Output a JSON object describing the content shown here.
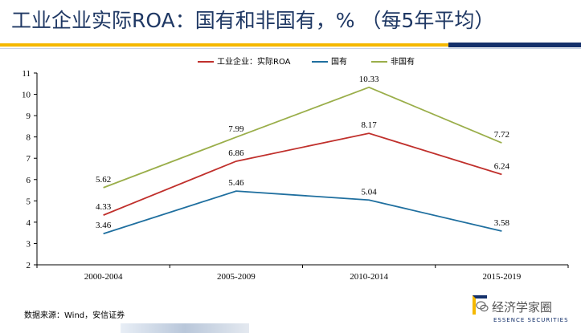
{
  "title": "工业企业实际ROA：国有和非国有，% （每5年平均）",
  "source": "数据来源：Wind，安信证券",
  "watermark": "经济学家圈",
  "brand_sub": "ESSENCE SECURITIES",
  "colors": {
    "title": "#1f3864",
    "gold": "#f5b800",
    "navy": "#14306b"
  },
  "chart_data": {
    "type": "line",
    "categories": [
      "2000-2004",
      "2005-2009",
      "2010-2014",
      "2015-2019"
    ],
    "ylim": [
      2,
      11
    ],
    "yticks": [
      2,
      3,
      4,
      5,
      6,
      7,
      8,
      9,
      10,
      11
    ],
    "grid": false,
    "legend_position": "top-center",
    "series": [
      {
        "name": "工业企业：实际ROA",
        "color": "#c0302c",
        "values": [
          4.33,
          6.86,
          8.17,
          6.24
        ],
        "labels": [
          "4.33",
          "6.86",
          "8.17",
          "6.24"
        ]
      },
      {
        "name": "国有",
        "color": "#1f6f9f",
        "values": [
          3.46,
          5.46,
          5.04,
          3.58
        ],
        "labels": [
          "3.46",
          "5.46",
          "5.04",
          "3.58"
        ]
      },
      {
        "name": "非国有",
        "color": "#9aae4a",
        "values": [
          5.62,
          7.99,
          10.33,
          7.72
        ],
        "labels": [
          "5.62",
          "7.99",
          "10.33",
          "7.72"
        ]
      }
    ]
  }
}
